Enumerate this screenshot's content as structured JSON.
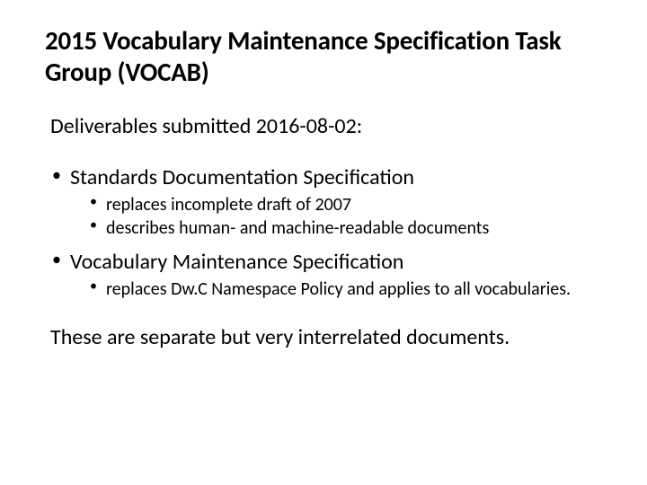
{
  "colors": {
    "background": "#ffffff",
    "text": "#000000"
  },
  "typography": {
    "family": "Calibri",
    "title_pt": 29,
    "title_weight": 700,
    "body_pt": 24,
    "sub_pt": 20,
    "body_weight": 400
  },
  "title": "2015 Vocabulary Maintenance Specification Task Group (VOCAB)",
  "subhead": "Deliverables submitted 2016-08-02:",
  "bullets": [
    {
      "label": "Standards Documentation Specification",
      "children": [
        "replaces incomplete draft of 2007",
        "describes human- and machine-readable documents"
      ]
    },
    {
      "label": "Vocabulary Maintenance Specification",
      "children": [
        "replaces Dw.C Namespace Policy and applies to all vocabularies."
      ]
    }
  ],
  "closing": "These are separate but very interrelated documents."
}
